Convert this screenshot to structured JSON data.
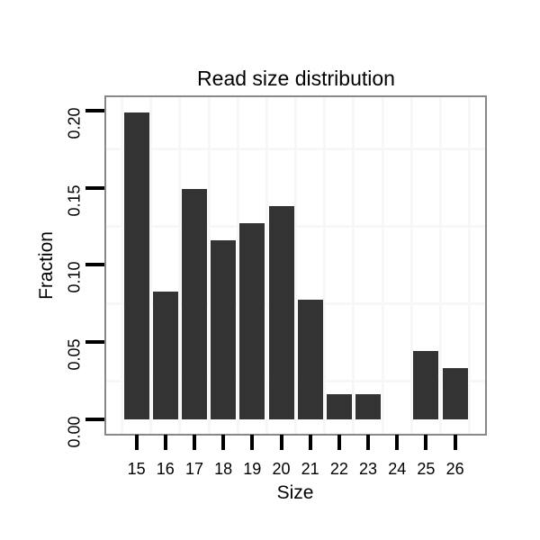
{
  "chart_data": {
    "type": "bar",
    "title": "Read size distribution",
    "xlabel": "Size",
    "ylabel": "Fraction",
    "categories": [
      "15",
      "16",
      "17",
      "18",
      "19",
      "20",
      "21",
      "22",
      "23",
      "24",
      "25",
      "26"
    ],
    "values": [
      0.1989,
      0.0829,
      0.1492,
      0.116,
      0.1271,
      0.1381,
      0.0773,
      0.0166,
      0.0166,
      0,
      0.0442,
      0.0331
    ],
    "y_tick_values": [
      0,
      0.05,
      0.1,
      0.15,
      0.2
    ],
    "y_tick_labels": [
      "0.00",
      "0.05",
      "0.10",
      "0.15",
      "0.20"
    ],
    "ylim": [
      0,
      0.21
    ],
    "grid": "minor-only",
    "legend": "none",
    "colors": {
      "bar": "#333333",
      "panel_border": "#888888",
      "grid": "#f7f7f7",
      "background": "#ffffff",
      "text": "#000000",
      "tick": "#000000"
    }
  }
}
